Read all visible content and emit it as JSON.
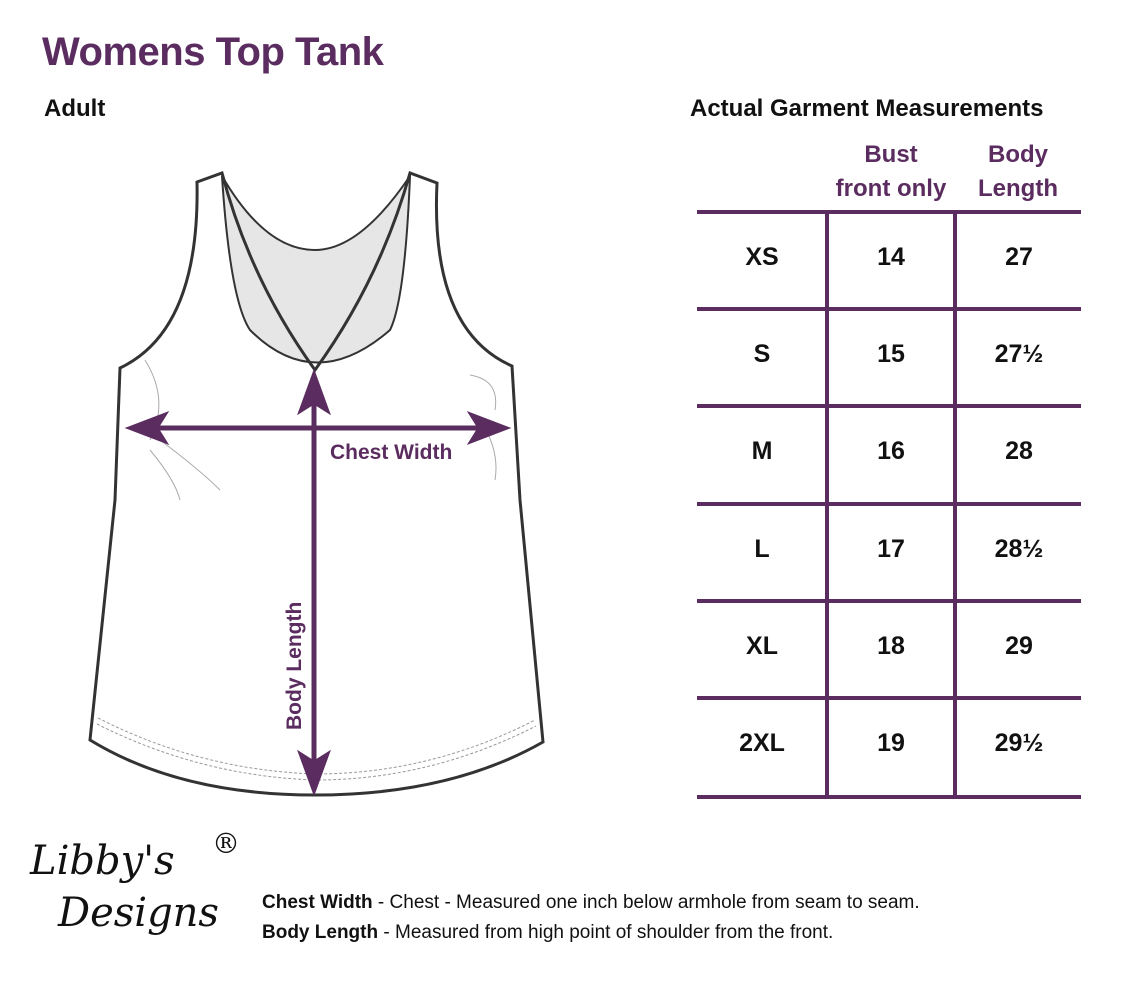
{
  "title": "Womens Top Tank",
  "subtitle": "Adult",
  "diagram": {
    "chest_label": "Chest Width",
    "length_label": "Body Length"
  },
  "table": {
    "title": "Actual Garment Measurements",
    "headers": [
      {
        "line1": "Bust",
        "line2": "front only"
      },
      {
        "line1": "Body",
        "line2": "Length"
      }
    ],
    "rows": [
      {
        "size": "XS",
        "bust": "14",
        "length": "27"
      },
      {
        "size": "S",
        "bust": "15",
        "length": "27½"
      },
      {
        "size": "M",
        "bust": "16",
        "length": "28"
      },
      {
        "size": "L",
        "bust": "17",
        "length": "28½"
      },
      {
        "size": "XL",
        "bust": "18",
        "length": "29"
      },
      {
        "size": "2XL",
        "bust": "19",
        "length": "29½"
      }
    ]
  },
  "logo": {
    "line1": "Libby's",
    "line2": "Designs",
    "mark": "®"
  },
  "notes": [
    {
      "term": "Chest Width",
      "text": " - Chest - Measured one inch below armhole from seam to seam."
    },
    {
      "term": "Body Length",
      "text": " - Measured from high point of shoulder from the front."
    }
  ],
  "colors": {
    "accent": "#5b2c5f"
  }
}
